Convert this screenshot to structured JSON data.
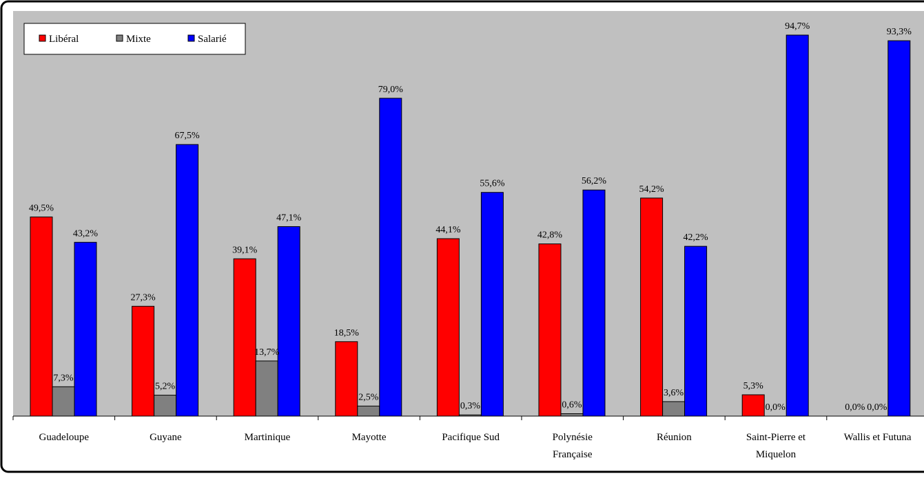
{
  "chart_data": {
    "type": "bar",
    "categories": [
      [
        "Guadeloupe"
      ],
      [
        "Guyane"
      ],
      [
        "Martinique"
      ],
      [
        "Mayotte"
      ],
      [
        "Pacifique Sud"
      ],
      [
        "Polynésie",
        "Française"
      ],
      [
        "Réunion"
      ],
      [
        "Saint-Pierre et",
        "Miquelon"
      ],
      [
        "Wallis et Futuna"
      ]
    ],
    "series": [
      {
        "name": "Libéral",
        "color": "#ff0000",
        "values": [
          49.5,
          27.3,
          39.1,
          18.5,
          44.1,
          42.8,
          54.2,
          5.3,
          0.0
        ],
        "labels": [
          "49,5%",
          "27,3%",
          "39,1%",
          "18,5%",
          "44,1%",
          "42,8%",
          "54,2%",
          "5,3%",
          "0,0%"
        ]
      },
      {
        "name": "Mixte",
        "color": "#808080",
        "values": [
          7.3,
          5.2,
          13.7,
          2.5,
          0.3,
          0.6,
          3.6,
          0.0,
          0.0
        ],
        "labels": [
          "7,3%",
          "5,2%",
          "13,7%",
          "2,5%",
          "0,3%",
          "0,6%",
          "3,6%",
          "0,0%",
          "0,0%"
        ]
      },
      {
        "name": "Salarié",
        "color": "#0000ff",
        "values": [
          43.2,
          67.5,
          47.1,
          79.0,
          55.6,
          56.2,
          42.2,
          94.7,
          93.3
        ],
        "labels": [
          "43,2%",
          "67,5%",
          "47,1%",
          "79,0%",
          "55,6%",
          "56,2%",
          "42,2%",
          "94,7%",
          "93,3%"
        ]
      }
    ],
    "ylim": [
      0,
      100
    ],
    "grid": false,
    "legend": "top-left",
    "plot_background": "#c0c0c0",
    "title": "",
    "xlabel": "",
    "ylabel": ""
  }
}
